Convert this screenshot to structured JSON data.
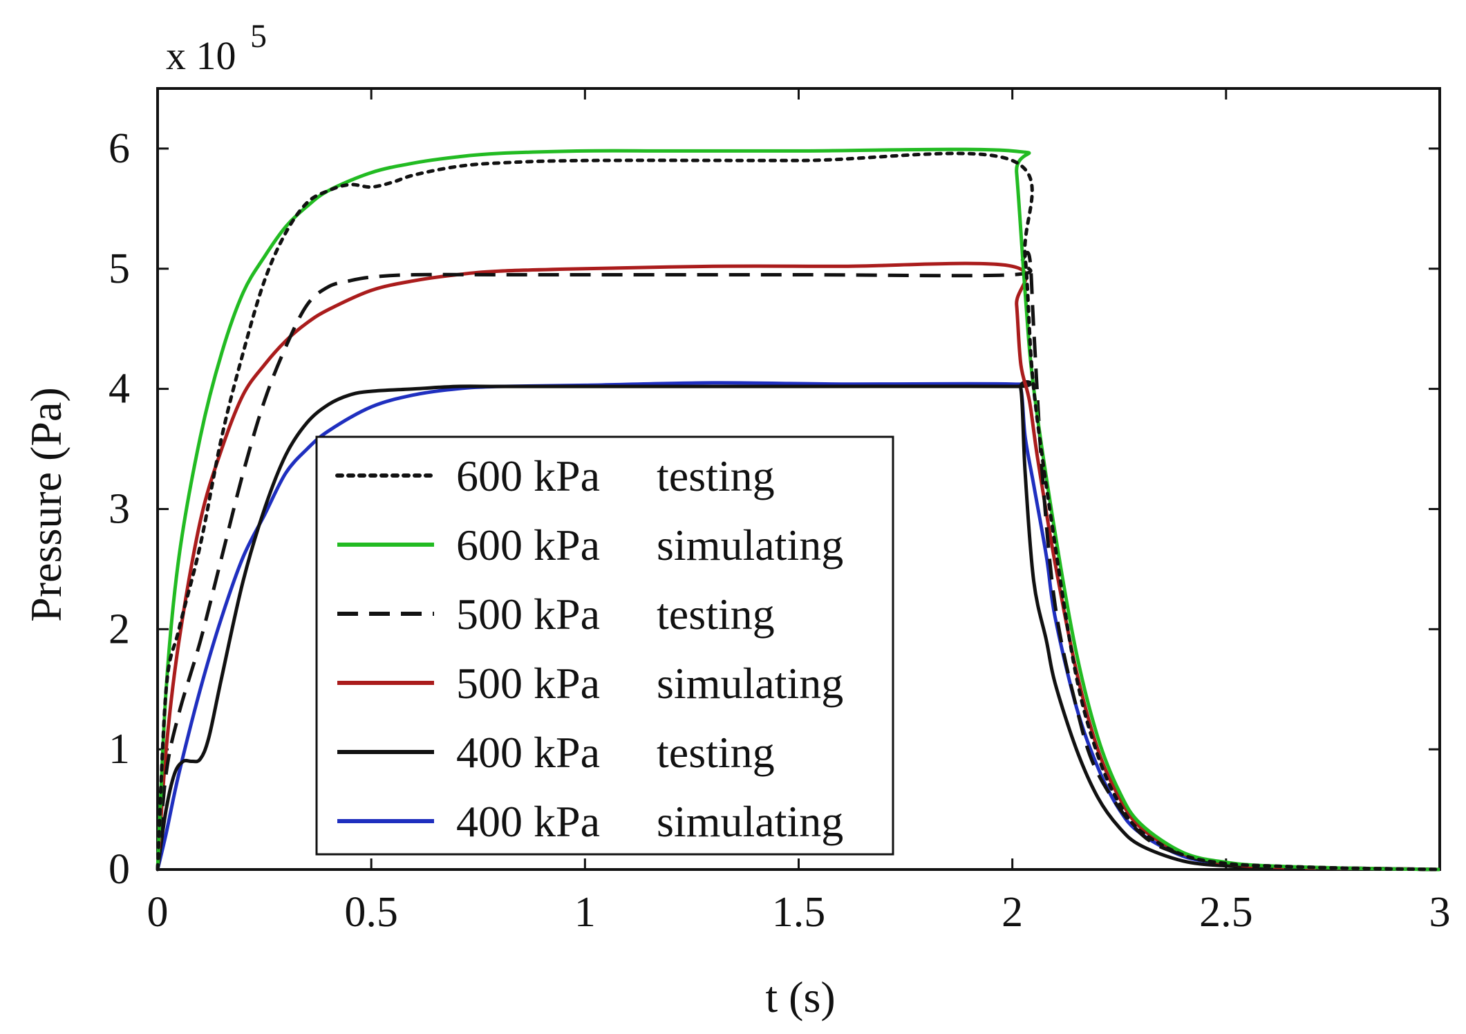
{
  "chart_data": {
    "type": "line",
    "xlabel": "t (s)",
    "ylabel": "Pressure (Pa)",
    "y_scale_label": {
      "base": "x 10",
      "exponent": "5"
    },
    "xlim": [
      0,
      3
    ],
    "ylim": [
      0,
      6.5
    ],
    "x_ticks": [
      0,
      0.5,
      1,
      1.5,
      2,
      2.5,
      3
    ],
    "x_tick_labels": [
      "0",
      "0.5",
      "1",
      "1.5",
      "2",
      "2.5",
      "3"
    ],
    "y_ticks": [
      0,
      1,
      2,
      3,
      4,
      5,
      6
    ],
    "y_tick_labels": [
      "0",
      "1",
      "2",
      "3",
      "4",
      "5",
      "6"
    ],
    "grid": false,
    "legend_position": "center-left",
    "series": [
      {
        "name": "600 kPa   testing",
        "legend_pressure": "600 kPa",
        "legend_mode": "testing",
        "color": "#111111",
        "style": "dotted",
        "x": [
          0,
          0.02,
          0.05,
          0.1,
          0.15,
          0.2,
          0.25,
          0.3,
          0.35,
          0.4,
          0.45,
          0.5,
          0.55,
          0.6,
          0.7,
          0.8,
          1.0,
          1.5,
          2.0,
          2.03,
          2.05,
          2.1,
          2.15,
          2.2,
          2.25,
          2.3,
          2.4,
          2.5,
          2.6,
          2.8,
          3.0
        ],
        "y": [
          0,
          1.5,
          2.0,
          2.7,
          3.6,
          4.3,
          4.9,
          5.3,
          5.55,
          5.65,
          5.7,
          5.68,
          5.72,
          5.78,
          5.85,
          5.88,
          5.9,
          5.9,
          5.9,
          5.1,
          4.0,
          2.7,
          1.6,
          0.95,
          0.55,
          0.32,
          0.12,
          0.05,
          0.03,
          0.01,
          0.0
        ]
      },
      {
        "name": "600 kPa   simulating",
        "legend_pressure": "600 kPa",
        "legend_mode": "simulating",
        "color": "#22bb22",
        "style": "solid",
        "x": [
          0,
          0.02,
          0.05,
          0.1,
          0.15,
          0.2,
          0.25,
          0.3,
          0.35,
          0.4,
          0.5,
          0.6,
          0.7,
          0.8,
          1.0,
          1.2,
          1.5,
          2.0,
          2.01,
          2.03,
          2.05,
          2.1,
          2.15,
          2.2,
          2.25,
          2.3,
          2.4,
          2.5,
          2.6,
          2.8,
          3.0
        ],
        "y": [
          0,
          1.5,
          2.6,
          3.6,
          4.3,
          4.8,
          5.1,
          5.35,
          5.52,
          5.65,
          5.8,
          5.88,
          5.93,
          5.96,
          5.98,
          5.98,
          5.98,
          5.98,
          5.8,
          4.8,
          4.0,
          2.8,
          1.8,
          1.1,
          0.65,
          0.38,
          0.14,
          0.06,
          0.03,
          0.01,
          0.0
        ]
      },
      {
        "name": "500 kPa   testing",
        "legend_pressure": "500 kPa",
        "legend_mode": "testing",
        "color": "#111111",
        "style": "dashed",
        "x": [
          0,
          0.02,
          0.05,
          0.1,
          0.15,
          0.2,
          0.25,
          0.3,
          0.35,
          0.4,
          0.45,
          0.5,
          0.6,
          0.8,
          1.0,
          1.5,
          2.0,
          2.02,
          2.04,
          2.05,
          2.07,
          2.1,
          2.15,
          2.2,
          2.3,
          2.4,
          2.5,
          2.6,
          2.8,
          3.0
        ],
        "y": [
          0,
          0.8,
          1.3,
          1.9,
          2.6,
          3.3,
          3.9,
          4.35,
          4.7,
          4.85,
          4.9,
          4.93,
          4.95,
          4.95,
          4.95,
          4.95,
          4.95,
          5.05,
          5.1,
          4.5,
          3.3,
          2.2,
          1.35,
          0.8,
          0.3,
          0.12,
          0.05,
          0.02,
          0.01,
          0.0
        ]
      },
      {
        "name": "500 kPa   simulating",
        "legend_pressure": "500 kPa",
        "legend_mode": "simulating",
        "color": "#aa1c1c",
        "style": "solid",
        "x": [
          0,
          0.02,
          0.05,
          0.1,
          0.15,
          0.2,
          0.25,
          0.3,
          0.35,
          0.4,
          0.5,
          0.6,
          0.7,
          0.8,
          1.0,
          1.3,
          1.6,
          2.0,
          2.01,
          2.02,
          2.04,
          2.06,
          2.1,
          2.15,
          2.2,
          2.25,
          2.3,
          2.4,
          2.5,
          2.6,
          2.8,
          3.0
        ],
        "y": [
          0,
          1.0,
          1.9,
          2.9,
          3.5,
          3.95,
          4.2,
          4.4,
          4.55,
          4.66,
          4.82,
          4.9,
          4.95,
          4.98,
          5.0,
          5.02,
          5.02,
          5.02,
          4.7,
          4.2,
          3.9,
          3.4,
          2.55,
          1.65,
          1.0,
          0.6,
          0.35,
          0.13,
          0.05,
          0.02,
          0.01,
          0.0
        ]
      },
      {
        "name": "400 kPa   testing",
        "legend_pressure": "400 kPa",
        "legend_mode": "testing",
        "color": "#111111",
        "style": "solid",
        "x": [
          0,
          0.02,
          0.04,
          0.06,
          0.08,
          0.1,
          0.12,
          0.15,
          0.2,
          0.25,
          0.3,
          0.35,
          0.4,
          0.45,
          0.5,
          0.6,
          0.7,
          0.8,
          1.0,
          1.5,
          2.0,
          2.02,
          2.03,
          2.05,
          2.08,
          2.1,
          2.15,
          2.2,
          2.25,
          2.3,
          2.4,
          2.5,
          2.6,
          2.8,
          3.0
        ],
        "y": [
          0,
          0.5,
          0.8,
          0.9,
          0.9,
          0.92,
          1.1,
          1.6,
          2.4,
          3.0,
          3.45,
          3.72,
          3.87,
          3.95,
          3.98,
          4.0,
          4.02,
          4.02,
          4.02,
          4.02,
          4.02,
          4.0,
          3.3,
          2.4,
          1.9,
          1.55,
          1.0,
          0.6,
          0.35,
          0.2,
          0.07,
          0.03,
          0.02,
          0.01,
          0.0
        ]
      },
      {
        "name": "400 kPa   simulating",
        "legend_pressure": "400 kPa",
        "legend_mode": "simulating",
        "color": "#1f2fbf",
        "style": "solid",
        "x": [
          0,
          0.02,
          0.05,
          0.1,
          0.15,
          0.2,
          0.25,
          0.3,
          0.35,
          0.4,
          0.5,
          0.6,
          0.7,
          0.8,
          1.0,
          1.3,
          1.6,
          2.0,
          2.02,
          2.03,
          2.05,
          2.08,
          2.1,
          2.15,
          2.2,
          2.25,
          2.3,
          2.4,
          2.5,
          2.6,
          2.8,
          3.0
        ],
        "y": [
          0,
          0.3,
          0.8,
          1.5,
          2.1,
          2.6,
          2.95,
          3.3,
          3.5,
          3.65,
          3.85,
          3.95,
          4.0,
          4.02,
          4.03,
          4.05,
          4.04,
          4.04,
          4.0,
          3.6,
          3.2,
          2.6,
          2.1,
          1.35,
          0.85,
          0.5,
          0.3,
          0.11,
          0.05,
          0.02,
          0.01,
          0.0
        ]
      }
    ]
  }
}
